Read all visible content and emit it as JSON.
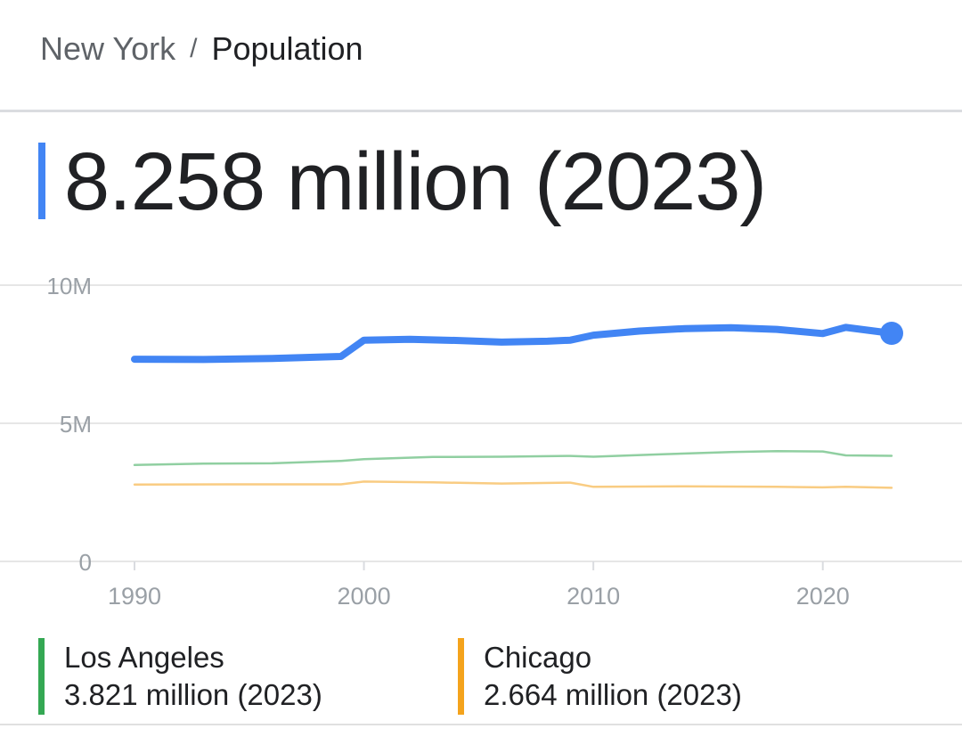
{
  "breadcrumb": {
    "city": "New York",
    "separator": "/",
    "topic": "Population"
  },
  "headline": {
    "value": "8.258 million (2023)",
    "accent_color": "#4285f4"
  },
  "legend": [
    {
      "name": "Los Angeles",
      "value": "3.821 million (2023)",
      "color": "#34a853"
    },
    {
      "name": "Chicago",
      "value": "2.664 million (2023)",
      "color": "#f4a31c"
    }
  ],
  "chart_data": {
    "type": "line",
    "title": "",
    "xlabel": "",
    "ylabel": "",
    "xlim": [
      1990,
      2023
    ],
    "ylim": [
      0,
      10
    ],
    "y_unit": "million",
    "y_ticks": [
      "0",
      "5M",
      "10M"
    ],
    "x_ticks": [
      "1990",
      "2000",
      "2010",
      "2020"
    ],
    "grid": true,
    "legend_position": "bottom",
    "series": [
      {
        "name": "New York",
        "color": "#4285f4",
        "x": [
          1990,
          1993,
          1996,
          1999,
          2000,
          2002,
          2004,
          2006,
          2008,
          2009,
          2010,
          2012,
          2014,
          2016,
          2018,
          2020,
          2021,
          2023
        ],
        "y": [
          7.32,
          7.31,
          7.35,
          7.42,
          8.01,
          8.04,
          8.0,
          7.94,
          7.97,
          8.01,
          8.19,
          8.34,
          8.43,
          8.46,
          8.4,
          8.25,
          8.47,
          8.258
        ],
        "emphasis": true
      },
      {
        "name": "Los Angeles",
        "color": "#34a853",
        "x": [
          1990,
          1993,
          1996,
          1999,
          2000,
          2003,
          2006,
          2009,
          2010,
          2013,
          2016,
          2018,
          2020,
          2021,
          2023
        ],
        "y": [
          3.49,
          3.54,
          3.55,
          3.64,
          3.7,
          3.78,
          3.79,
          3.82,
          3.79,
          3.88,
          3.96,
          3.99,
          3.98,
          3.84,
          3.821
        ]
      },
      {
        "name": "Chicago",
        "color": "#f4a31c",
        "x": [
          1990,
          1995,
          1999,
          2000,
          2003,
          2006,
          2009,
          2010,
          2014,
          2018,
          2020,
          2021,
          2023
        ],
        "y": [
          2.78,
          2.79,
          2.79,
          2.89,
          2.86,
          2.82,
          2.85,
          2.7,
          2.72,
          2.7,
          2.68,
          2.7,
          2.664
        ]
      }
    ]
  }
}
